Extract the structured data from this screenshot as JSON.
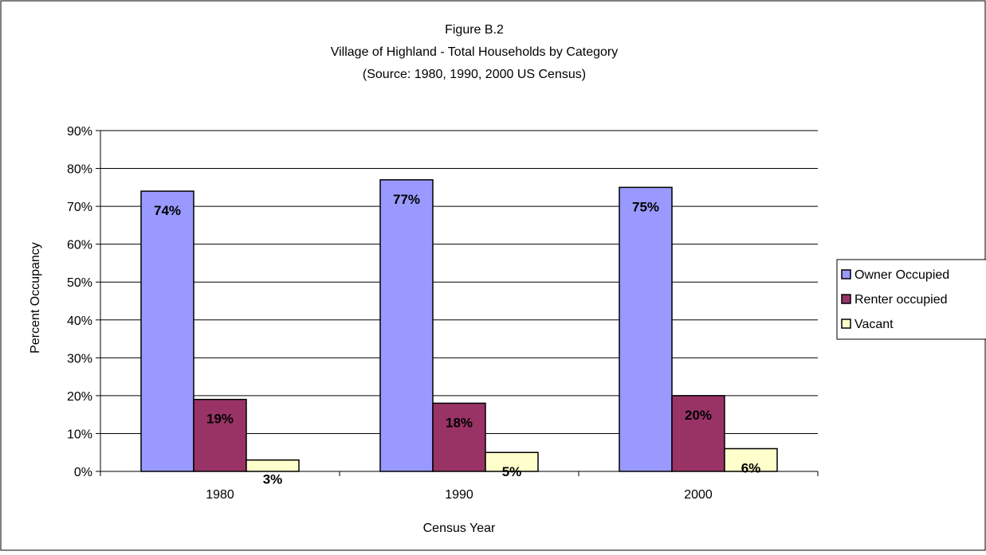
{
  "chart_data": {
    "type": "bar",
    "title_lines": [
      "Figure B.2",
      "Village of Highland - Total Households by Category",
      "(Source:  1980, 1990, 2000 US Census)"
    ],
    "xlabel": "Census Year",
    "ylabel": "Percent Occupancy",
    "categories": [
      "1980",
      "1990",
      "2000"
    ],
    "series": [
      {
        "name": "Owner Occupied",
        "color": "#9999ff",
        "values": [
          74,
          77,
          75
        ],
        "labels": [
          "74%",
          "77%",
          "75%"
        ]
      },
      {
        "name": "Renter occupied",
        "color": "#993366",
        "values": [
          19,
          18,
          20
        ],
        "labels": [
          "19%",
          "18%",
          "20%"
        ]
      },
      {
        "name": "Vacant",
        "color": "#ffffcc",
        "values": [
          3,
          5,
          6
        ],
        "labels": [
          "3%",
          "5%",
          "6%"
        ]
      }
    ],
    "ylim": [
      0,
      90
    ],
    "yticks": [
      0,
      10,
      20,
      30,
      40,
      50,
      60,
      70,
      80,
      90
    ],
    "ytick_labels": [
      "0%",
      "10%",
      "20%",
      "30%",
      "40%",
      "50%",
      "60%",
      "70%",
      "80%",
      "90%"
    ],
    "grid": true,
    "legend_position": "right"
  }
}
